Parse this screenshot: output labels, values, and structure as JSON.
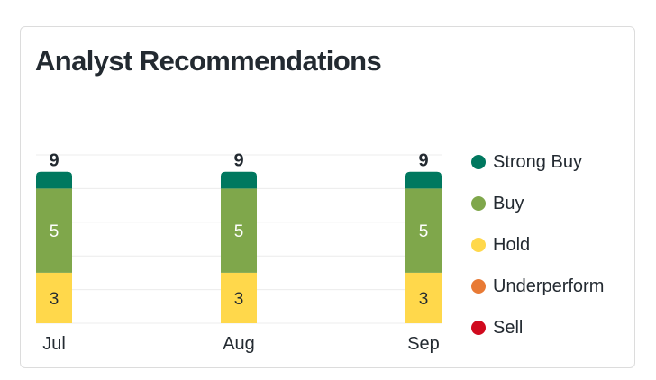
{
  "card": {
    "title": "Analyst Recommendations"
  },
  "chart_data": {
    "type": "bar",
    "stacked": true,
    "categories": [
      "Jul",
      "Aug",
      "Sep"
    ],
    "series": [
      {
        "name": "Strong Buy",
        "color": "#00785f",
        "values": [
          1,
          1,
          1
        ]
      },
      {
        "name": "Buy",
        "color": "#7fa74b",
        "values": [
          5,
          5,
          5
        ]
      },
      {
        "name": "Hold",
        "color": "#ffd84b",
        "values": [
          3,
          3,
          3
        ]
      },
      {
        "name": "Underperform",
        "color": "#e87a35",
        "values": [
          0,
          0,
          0
        ]
      },
      {
        "name": "Sell",
        "color": "#d00a1e",
        "values": [
          0,
          0,
          0
        ]
      }
    ],
    "totals": [
      9,
      9,
      9
    ],
    "ylim": [
      0,
      10
    ],
    "grid": true,
    "legend": "right"
  }
}
